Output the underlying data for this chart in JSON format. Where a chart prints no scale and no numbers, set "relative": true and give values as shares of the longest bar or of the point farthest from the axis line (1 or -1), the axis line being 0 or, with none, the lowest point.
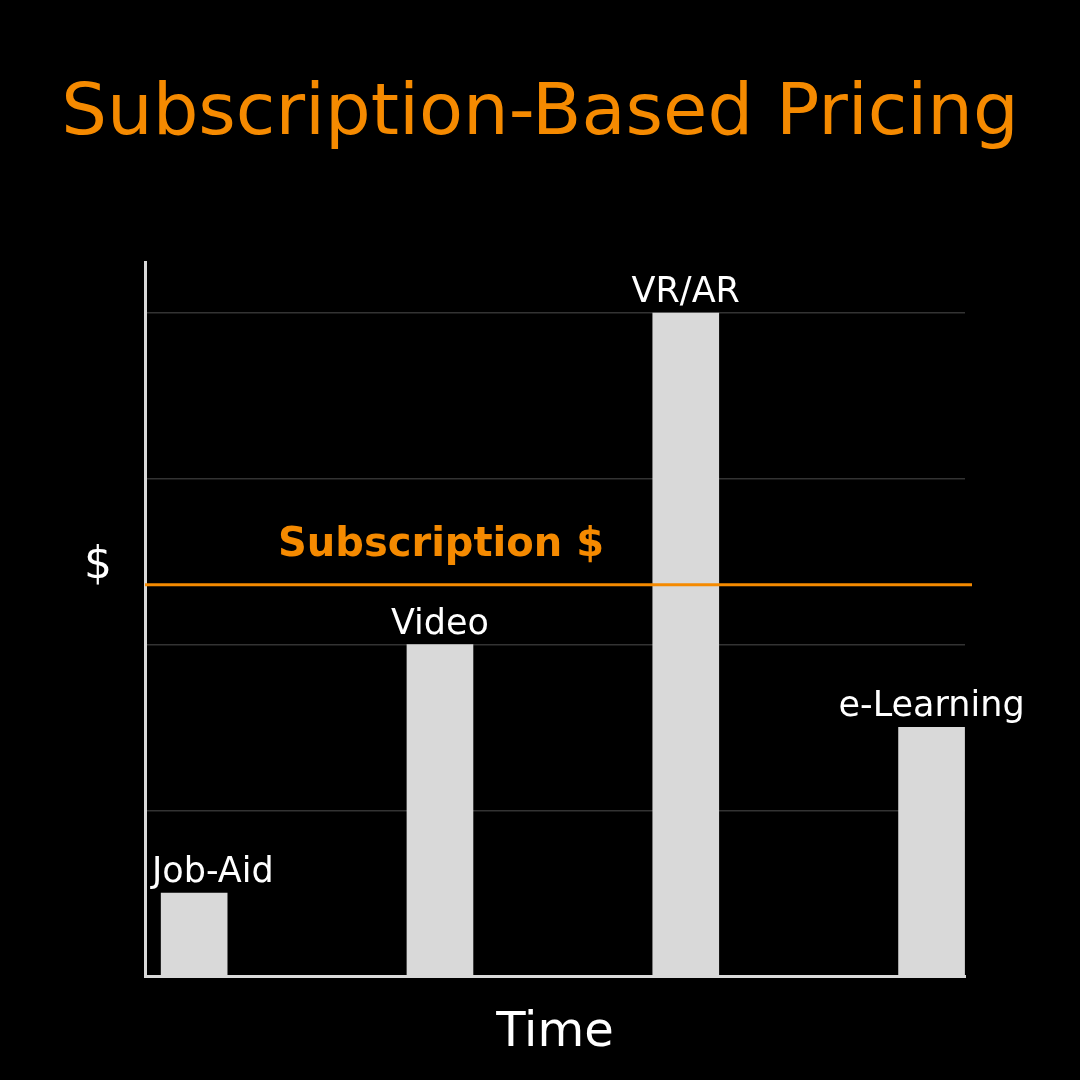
{
  "chart_data": {
    "type": "bar",
    "title": "Subscription-Based Pricing",
    "xlabel": "Time",
    "ylabel": "$",
    "categories": [
      "Job-Aid",
      "Video",
      "VR/AR",
      "e-Learning"
    ],
    "values": [
      0.125,
      0.5,
      1,
      0.375
    ],
    "color": "#d9d9d9",
    "relative": true,
    "grid": "y",
    "tick_labels": "x",
    "ref_lines": [
      {
        "axis": "y",
        "value": 0.59,
        "label": "Subscription $",
        "color": "#f58a00"
      }
    ]
  }
}
